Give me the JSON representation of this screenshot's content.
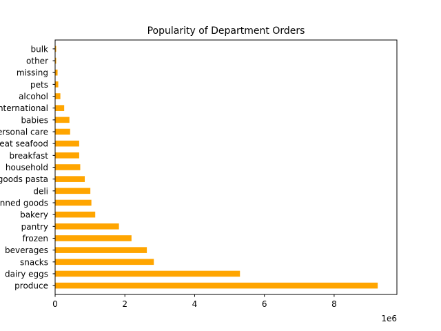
{
  "chart_data": {
    "type": "bar",
    "orientation": "horizontal",
    "title": "Popularity of Department Orders",
    "xlabel": "",
    "ylabel": "",
    "axis_multiplier_label": "1e6",
    "x_ticks": [
      0,
      2,
      4,
      6,
      8
    ],
    "xlim": [
      0,
      9.8
    ],
    "grid": false,
    "bar_color": "#ffa500",
    "categories": [
      "produce",
      "dairy eggs",
      "snacks",
      "beverages",
      "frozen",
      "pantry",
      "bakery",
      "canned goods",
      "deli",
      "dry goods pasta",
      "household",
      "breakfast",
      "meat seafood",
      "personal care",
      "babies",
      "international",
      "alcohol",
      "pets",
      "missing",
      "other",
      "bulk"
    ],
    "values": [
      9.25,
      5.3,
      2.83,
      2.63,
      2.19,
      1.83,
      1.15,
      1.04,
      1.01,
      0.85,
      0.72,
      0.69,
      0.69,
      0.43,
      0.41,
      0.26,
      0.15,
      0.09,
      0.07,
      0.03,
      0.03
    ]
  }
}
